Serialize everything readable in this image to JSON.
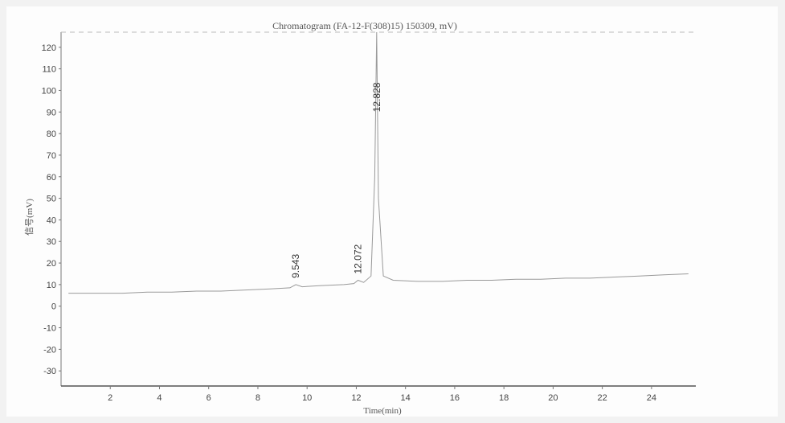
{
  "chart_data": {
    "type": "line",
    "title": "Chromatogram (FA-12-F(308)15) 150309, mV)",
    "xlabel": "Time(min)",
    "ylabel": "信号(mV)",
    "xlim": [
      0,
      25.8
    ],
    "ylim": [
      -37,
      127
    ],
    "x_ticks": [
      2,
      4,
      6,
      8,
      10,
      12,
      14,
      16,
      18,
      20,
      22,
      24
    ],
    "y_ticks": [
      -30,
      -20,
      -10,
      0,
      10,
      20,
      30,
      40,
      50,
      60,
      70,
      80,
      90,
      100,
      110,
      120
    ],
    "grid": false,
    "series": [
      {
        "x": [
          0.3,
          1.5,
          2.5,
          3.5,
          4.5,
          5.5,
          6.5,
          7.5,
          8.5,
          9.3,
          9.543,
          9.8,
          10.5,
          11.5,
          11.9,
          12.072,
          12.3,
          12.6,
          12.75,
          12.828,
          12.9,
          13.1,
          13.5,
          14.5,
          15.5,
          16.5,
          17.5,
          18.5,
          19.5,
          20.5,
          21.5,
          22.5,
          23.5,
          24.5,
          25.5
        ],
        "y": [
          6,
          6,
          6,
          6.5,
          6.5,
          7,
          7,
          7.5,
          8,
          8.5,
          10,
          9,
          9.5,
          10,
          10.5,
          12,
          11,
          14,
          60,
          127,
          50,
          14,
          12,
          11.5,
          11.5,
          12,
          12,
          12.5,
          12.5,
          13,
          13,
          13.5,
          14,
          14.5,
          15
        ]
      }
    ],
    "peaks": [
      {
        "time": "9.543",
        "x": 9.543,
        "y": 10
      },
      {
        "time": "12.072",
        "x": 12.072,
        "y": 12
      },
      {
        "time": "12.828",
        "x": 12.828,
        "y": 127
      }
    ]
  }
}
